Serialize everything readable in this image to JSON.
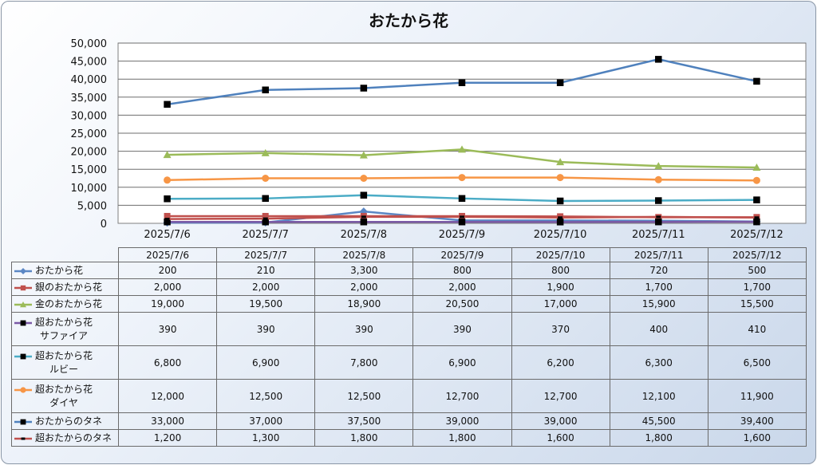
{
  "chart_data": {
    "type": "line",
    "title": "おたから花",
    "categories": [
      "2025/7/6",
      "2025/7/7",
      "2025/7/8",
      "2025/7/9",
      "2025/7/10",
      "2025/7/11",
      "2025/7/12"
    ],
    "ylim": [
      0,
      50000
    ],
    "yticks": [
      "0",
      "5,000",
      "10,000",
      "15,000",
      "20,000",
      "25,000",
      "30,000",
      "35,000",
      "40,000",
      "45,000",
      "50,000"
    ],
    "grid": true,
    "legend_placement": "data table",
    "series": [
      {
        "name": [
          "おたから花"
        ],
        "values": [
          200,
          210,
          3300,
          800,
          800,
          720,
          500
        ],
        "display": [
          "200",
          "210",
          "3,300",
          "800",
          "800",
          "720",
          "500"
        ],
        "color": "#5b87c4",
        "marker": "diamond"
      },
      {
        "name": [
          "銀のおたから花"
        ],
        "values": [
          2000,
          2000,
          2000,
          2000,
          1900,
          1700,
          1700
        ],
        "display": [
          "2,000",
          "2,000",
          "2,000",
          "2,000",
          "1,900",
          "1,700",
          "1,700"
        ],
        "color": "#c0504d",
        "marker": "square"
      },
      {
        "name": [
          "金のおたから花"
        ],
        "values": [
          19000,
          19500,
          18900,
          20500,
          17000,
          15900,
          15500
        ],
        "display": [
          "19,000",
          "19,500",
          "18,900",
          "20,500",
          "17,000",
          "15,900",
          "15,500"
        ],
        "color": "#9bbb59",
        "marker": "triangle"
      },
      {
        "name": [
          "超おたから花",
          "サファイア"
        ],
        "values": [
          390,
          390,
          390,
          390,
          370,
          400,
          410
        ],
        "display": [
          "390",
          "390",
          "390",
          "390",
          "370",
          "400",
          "410"
        ],
        "color": "#7b5aa6",
        "marker": "square-black"
      },
      {
        "name": [
          "超おたから花",
          "ルビー"
        ],
        "values": [
          6800,
          6900,
          7800,
          6900,
          6200,
          6300,
          6500
        ],
        "display": [
          "6,800",
          "6,900",
          "7,800",
          "6,900",
          "6,200",
          "6,300",
          "6,500"
        ],
        "color": "#4bacc6",
        "marker": "square-black"
      },
      {
        "name": [
          "超おたから花",
          "ダイヤ"
        ],
        "values": [
          12000,
          12500,
          12500,
          12700,
          12700,
          12100,
          11900
        ],
        "display": [
          "12,000",
          "12,500",
          "12,500",
          "12,700",
          "12,700",
          "12,100",
          "11,900"
        ],
        "color": "#f79646",
        "marker": "circle"
      },
      {
        "name": [
          "おたからのタネ"
        ],
        "values": [
          33000,
          37000,
          37500,
          39000,
          39000,
          45500,
          39400
        ],
        "display": [
          "33,000",
          "37,000",
          "37,500",
          "39,000",
          "39,000",
          "45,500",
          "39,400"
        ],
        "color": "#4f81bd",
        "marker": "square-black"
      },
      {
        "name": [
          "超おたからのタネ"
        ],
        "values": [
          1200,
          1300,
          1800,
          1800,
          1600,
          1800,
          1600
        ],
        "display": [
          "1,200",
          "1,300",
          "1,800",
          "1,800",
          "1,600",
          "1,800",
          "1,600"
        ],
        "color": "#c0504d",
        "marker": "dash"
      }
    ]
  }
}
